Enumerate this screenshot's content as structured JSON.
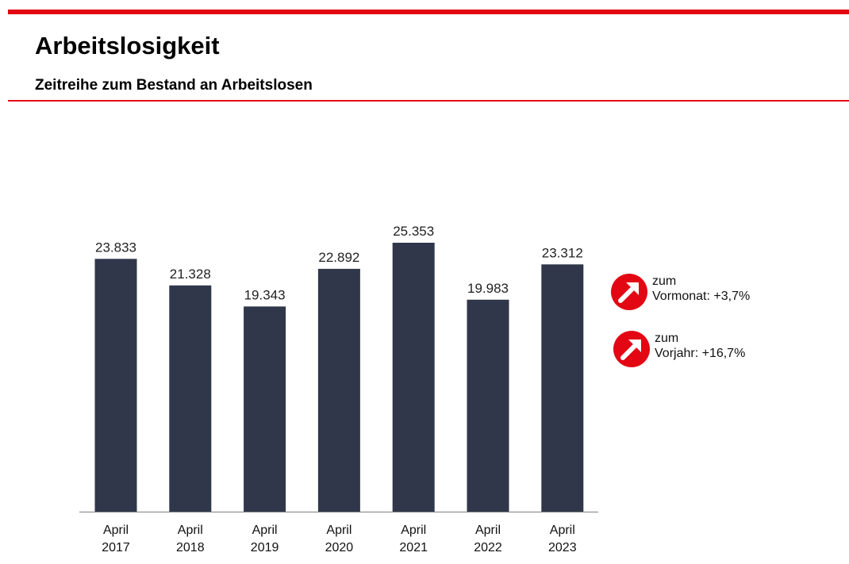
{
  "header": {
    "title": "Arbeitslosigkeit",
    "subtitle": "Zeitreihe zum Bestand an Arbeitslosen"
  },
  "colors": {
    "accent": "#e30613",
    "bar": "#30374b",
    "axis": "#7f7f7f"
  },
  "chart_data": {
    "type": "bar",
    "title": "Zeitreihe zum Bestand an Arbeitslosen",
    "categories": [
      [
        "April",
        "2017"
      ],
      [
        "April",
        "2018"
      ],
      [
        "April",
        "2019"
      ],
      [
        "April",
        "2020"
      ],
      [
        "April",
        "2021"
      ],
      [
        "April",
        "2022"
      ],
      [
        "April",
        "2023"
      ]
    ],
    "values": [
      23833,
      21328,
      19343,
      22892,
      25353,
      19983,
      23312
    ],
    "labels": [
      "23.833",
      "21.328",
      "19.343",
      "22.892",
      "25.353",
      "19.983",
      "23.312"
    ],
    "ylim": [
      0,
      25353
    ],
    "grid": false,
    "xlabel": "",
    "ylabel": ""
  },
  "indicators": [
    {
      "icon": "arrow-up-right-icon",
      "line1": "zum",
      "label": "Vormonat:",
      "value": "+3,7%"
    },
    {
      "icon": "arrow-up-right-icon",
      "line1": "zum",
      "label": "Vorjahr:",
      "value": "+16,7%"
    }
  ]
}
